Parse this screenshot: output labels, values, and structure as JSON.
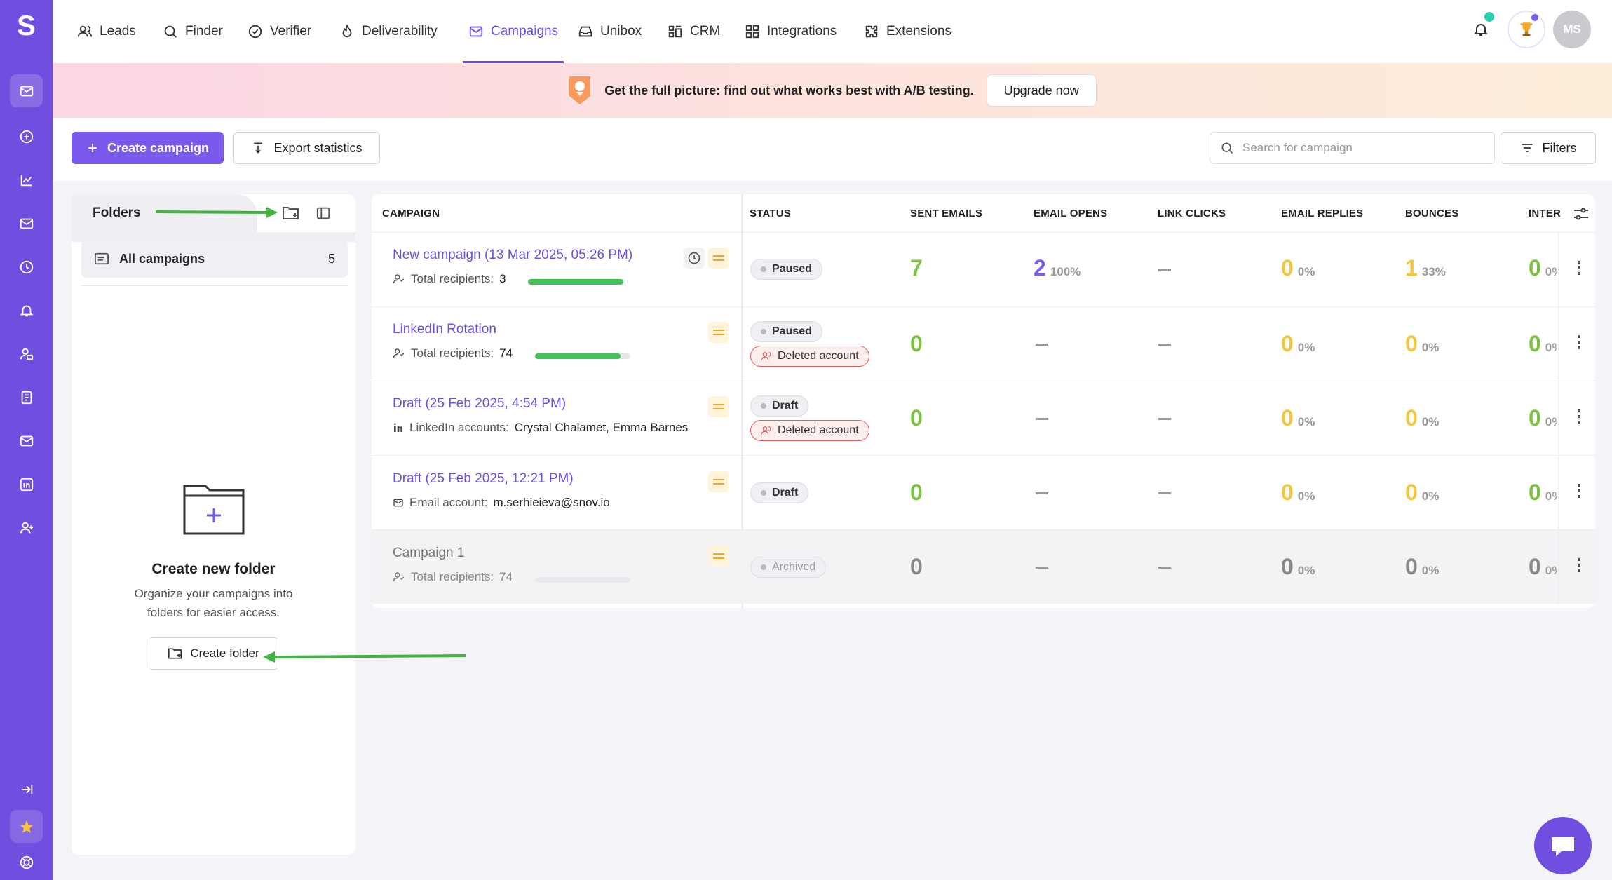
{
  "logo": "S",
  "nav": [
    {
      "label": "Leads",
      "icon": "users-icon"
    },
    {
      "label": "Finder",
      "icon": "search-icon"
    },
    {
      "label": "Verifier",
      "icon": "check-circle-icon"
    },
    {
      "label": "Deliverability",
      "icon": "flame-icon"
    },
    {
      "label": "Campaigns",
      "icon": "mail-icon",
      "active": true
    },
    {
      "label": "Unibox",
      "icon": "inbox-icon"
    },
    {
      "label": "CRM",
      "icon": "crm-icon"
    },
    {
      "label": "Integrations",
      "icon": "grid-icon"
    },
    {
      "label": "Extensions",
      "icon": "puzzle-icon"
    }
  ],
  "user": {
    "initials": "MS"
  },
  "banner": {
    "text": "Get the full picture: find out what works best with A/B testing.",
    "button": "Upgrade now"
  },
  "toolbar": {
    "create_label": "Create campaign",
    "export_label": "Export statistics",
    "search_placeholder": "Search for campaign",
    "filters_label": "Filters"
  },
  "folders": {
    "tab_label": "Folders",
    "all_label": "All campaigns",
    "all_count": "5",
    "empty_title": "Create new folder",
    "empty_desc_1": "Organize your campaigns into",
    "empty_desc_2": "folders for easier access.",
    "create_button": "Create folder"
  },
  "table": {
    "headers": {
      "campaign": "CAMPAIGN",
      "status": "STATUS",
      "sent": "SENT EMAILS",
      "opens": "EMAIL OPENS",
      "clicks": "LINK CLICKS",
      "replies": "EMAIL REPLIES",
      "bounces": "BOUNCES",
      "inter": "INTER"
    },
    "rows": [
      {
        "name": "New campaign (13 Mar 2025, 05:26 PM)",
        "sub_label": "Total recipients:",
        "sub_value": "3",
        "progress": 1.0,
        "status": [
          "Paused"
        ],
        "sent": "7",
        "opens": "2",
        "opens_pct": "100%",
        "replies": "0",
        "replies_pct": "0%",
        "bounces": "1",
        "bounces_pct": "33%",
        "inter": "0",
        "inter_pct": "0%"
      },
      {
        "name": "LinkedIn Rotation",
        "sub_label": "Total recipients:",
        "sub_value": "74",
        "progress": 0.9,
        "status": [
          "Paused",
          "Deleted account"
        ],
        "sent": "0",
        "replies": "0",
        "replies_pct": "0%",
        "bounces": "0",
        "bounces_pct": "0%",
        "inter": "0",
        "inter_pct": "0%"
      },
      {
        "name": "Draft (25 Feb 2025, 4:54 PM)",
        "sub_label": "LinkedIn accounts:",
        "sub_value": "Crystal Chalamet, Emma Barnes",
        "status": [
          "Draft",
          "Deleted account"
        ],
        "sent": "0",
        "replies": "0",
        "replies_pct": "0%",
        "bounces": "0",
        "bounces_pct": "0%",
        "inter": "0",
        "inter_pct": "0%"
      },
      {
        "name": "Draft (25 Feb 2025, 12:21 PM)",
        "sub_label": "Email account:",
        "sub_value": "m.serhieieva@snov.io",
        "status": [
          "Draft"
        ],
        "sent": "0",
        "replies": "0",
        "replies_pct": "0%",
        "bounces": "0",
        "bounces_pct": "0%",
        "inter": "0",
        "inter_pct": "0%"
      },
      {
        "name": "Campaign 1",
        "sub_label": "Total recipients:",
        "sub_value": "74",
        "progress": 0,
        "status": [
          "Archived"
        ],
        "sent": "0",
        "replies": "0",
        "replies_pct": "0%",
        "bounces": "0",
        "bounces_pct": "0%",
        "inter": "0",
        "inter_pct": "0%"
      }
    ]
  },
  "colors": {
    "brand": "#6f4ee0",
    "sent_green": "#7cc243",
    "opens_purple": "#7a5aed",
    "warn_yellow": "#f2c641",
    "archived_gray": "#8a8a8a"
  }
}
